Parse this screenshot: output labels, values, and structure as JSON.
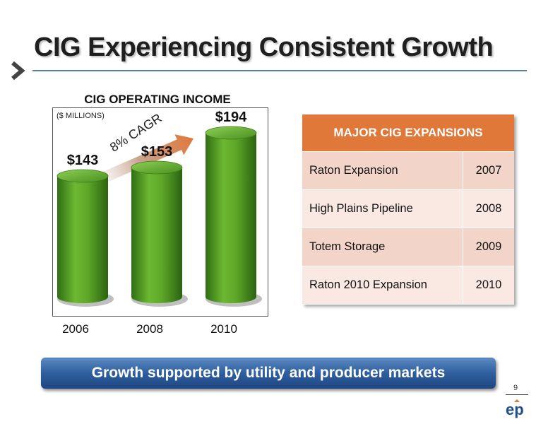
{
  "slide": {
    "title": "CIG Experiencing Consistent Growth",
    "banner": "Growth supported by utility and producer markets",
    "page_number": "9"
  },
  "chart_data": {
    "type": "bar",
    "title": "CIG OPERATING INCOME",
    "unit_label": "($ MILLIONS)",
    "categories": [
      "2006",
      "2008",
      "2010"
    ],
    "values": [
      143,
      153,
      194
    ],
    "value_labels": [
      "$143",
      "$153",
      "$194"
    ],
    "annotation": "8% CAGR",
    "colors": {
      "bar": "#5fa82a",
      "arrow": "#e0783a"
    }
  },
  "expansions": {
    "header": "MAJOR CIG EXPANSIONS",
    "rows": [
      {
        "name": "Raton Expansion",
        "year": "2007"
      },
      {
        "name": "High Plains Pipeline",
        "year": "2008"
      },
      {
        "name": "Totem Storage",
        "year": "2009"
      },
      {
        "name": "Raton 2010 Expansion",
        "year": "2010"
      }
    ],
    "colors": {
      "header": "#e0783a",
      "row_dark": "#f3d4c8",
      "row_light": "#fae9e3"
    }
  },
  "logo": {
    "icon": "ep-logo-icon"
  }
}
